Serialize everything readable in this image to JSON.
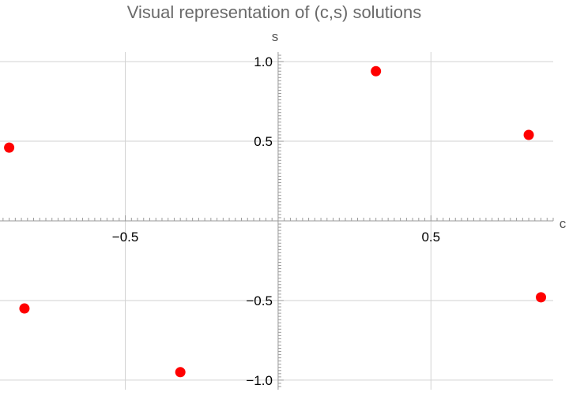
{
  "chart_data": {
    "type": "scatter",
    "title": "Visual representation of (c,s) solutions",
    "xlabel": "c",
    "ylabel": "s",
    "xlim": [
      -0.91,
      0.9
    ],
    "ylim": [
      -1.06,
      1.06
    ],
    "x_ticks": [
      -0.5,
      0.5
    ],
    "x_tick_labels": [
      "−0.5",
      "0.5"
    ],
    "y_ticks": [
      -1.0,
      -0.5,
      0.5,
      1.0
    ],
    "y_tick_labels": [
      "−1.0",
      "−0.5",
      "0.5",
      "1.0"
    ],
    "grid": true,
    "marker_color": "#ff0000",
    "series": [
      {
        "x": [
          -0.88,
          -0.83,
          -0.32,
          0.32,
          0.82,
          0.86
        ],
        "y": [
          0.46,
          -0.55,
          -0.95,
          0.94,
          0.54,
          -0.48
        ]
      }
    ]
  }
}
